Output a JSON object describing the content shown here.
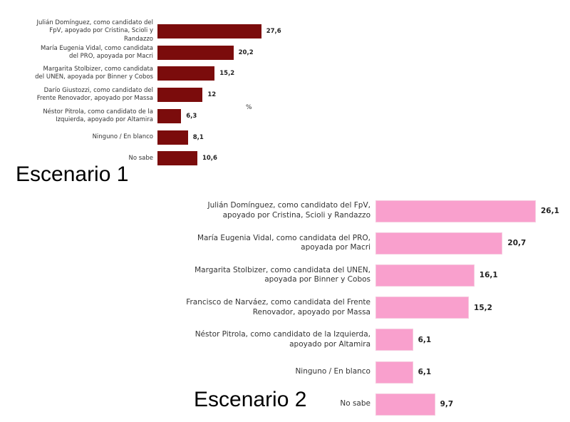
{
  "chart_data": [
    {
      "type": "bar",
      "title": "Escenario 1",
      "annotation": "%",
      "color": "#7b0c0c",
      "categories": [
        "Julián Domínguez, como candidato del FpV, apoyado por Cristina, Scioli y Randazzo",
        "María Eugenia Vidal, como candidata del PRO, apoyada por Macri",
        "Margarita Stolbizer, como candidata del UNEN, apoyada por Binner y Cobos",
        "Darío Giustozzi, como candidato del Frente Renovador, apoyado por Massa",
        "Néstor Pitrola, como candidato de la Izquierda, apoyado por Altamira",
        "Ninguno / En blanco",
        "No sabe"
      ],
      "values": [
        27.6,
        20.2,
        15.2,
        12,
        6.3,
        8.1,
        10.6
      ],
      "value_labels": [
        "27,6",
        "20,2",
        "15,2",
        "12",
        "6,3",
        "8,1",
        "10,6"
      ]
    },
    {
      "type": "bar",
      "title": "Escenario 2",
      "color": "#f9a0cd",
      "categories": [
        "Julián Domínguez, como candidato del FpV,  apoyado por Cristina, Scioli y Randazzo",
        "María Eugenia Vidal, como candidata del PRO, apoyada por Macri",
        "Margarita Stolbizer, como candidata del UNEN, apoyada por Binner y Cobos",
        "Francisco de Narváez, como candidata del Frente Renovador, apoyado por Massa",
        "Néstor Pitrola, como candidato de la Izquierda, apoyado por Altamira",
        "Ninguno / En blanco",
        "No sabe"
      ],
      "values": [
        26.1,
        20.7,
        16.1,
        15.2,
        6.1,
        6.1,
        9.7
      ],
      "value_labels": [
        "26,1",
        "20,7",
        "16,1",
        "15,2",
        "6,1",
        "6,1",
        "9,7"
      ]
    }
  ]
}
